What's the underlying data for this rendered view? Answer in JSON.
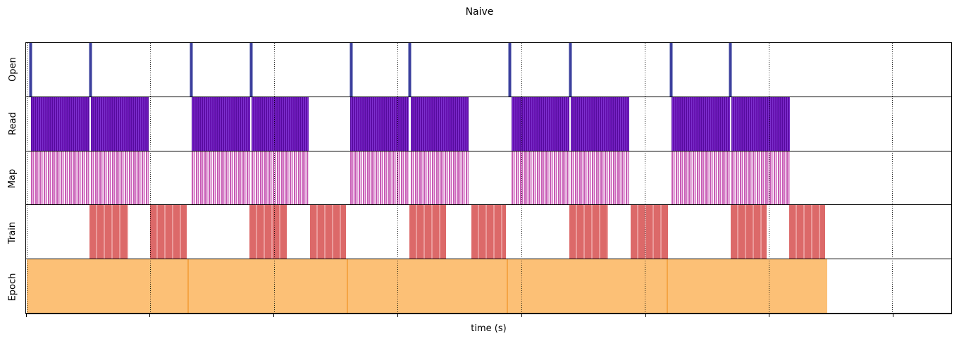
{
  "chart_data": {
    "type": "timeline",
    "title": "Naive",
    "xlabel": "time (s)",
    "x_axis": {
      "ticks_units": [
        0,
        1,
        2,
        3,
        4,
        5,
        6,
        7
      ],
      "range_units": [
        -0.003,
        7.477
      ],
      "origin_frac": 0.00046,
      "unit_frac": 0.13369,
      "grid": "dotted",
      "tick_labels_visible": false
    },
    "tracks": [
      {
        "label": "Open",
        "kind": "events",
        "color": "#3c3f9d",
        "halo_color": "#9aa0ce",
        "events": [
          0.035,
          0.517,
          1.335,
          1.815,
          2.625,
          3.098,
          3.907,
          4.397,
          5.21,
          5.693
        ]
      },
      {
        "label": "Read",
        "kind": "intervals",
        "color": "#6912b4",
        "stripe_colors": [
          "#560a9e",
          "#7e30cf"
        ],
        "intervals": [
          [
            0.034,
            0.511
          ],
          [
            0.523,
            0.989
          ],
          [
            1.336,
            1.808
          ],
          [
            1.82,
            2.281
          ],
          [
            2.619,
            3.091
          ],
          [
            3.105,
            3.574
          ],
          [
            3.919,
            4.388
          ],
          [
            4.402,
            4.874
          ],
          [
            5.213,
            5.685
          ],
          [
            5.698,
            6.174
          ]
        ]
      },
      {
        "label": "Map",
        "kind": "intervals",
        "color": "#cd66bc",
        "stripe_colors": [
          "#c65ab4",
          "#ffffff"
        ],
        "intervals": [
          [
            0.034,
            0.511
          ],
          [
            0.523,
            0.989
          ],
          [
            1.336,
            1.808
          ],
          [
            1.82,
            2.281
          ],
          [
            2.619,
            3.091
          ],
          [
            3.105,
            3.574
          ],
          [
            3.919,
            4.388
          ],
          [
            4.402,
            4.874
          ],
          [
            5.213,
            5.685
          ],
          [
            5.698,
            6.174
          ]
        ]
      },
      {
        "label": "Train",
        "kind": "intervals",
        "color": "#dc6969",
        "separator_color": "#eb9b9b",
        "intervals": [
          [
            0.508,
            0.821
          ],
          [
            0.998,
            1.293
          ],
          [
            1.805,
            2.107
          ],
          [
            2.294,
            2.585
          ],
          [
            3.096,
            3.392
          ],
          [
            3.597,
            3.876
          ],
          [
            4.388,
            4.7
          ],
          [
            4.883,
            5.184
          ],
          [
            5.696,
            5.986
          ],
          [
            6.168,
            6.458
          ]
        ]
      },
      {
        "label": "Epoch",
        "kind": "intervals",
        "color": "#fcc076",
        "separator_color": "#f5a444",
        "intervals": [
          [
            0.002,
            1.299
          ],
          [
            1.299,
            2.59
          ],
          [
            2.59,
            3.882
          ],
          [
            3.882,
            5.173
          ],
          [
            5.173,
            6.475
          ]
        ]
      }
    ]
  }
}
